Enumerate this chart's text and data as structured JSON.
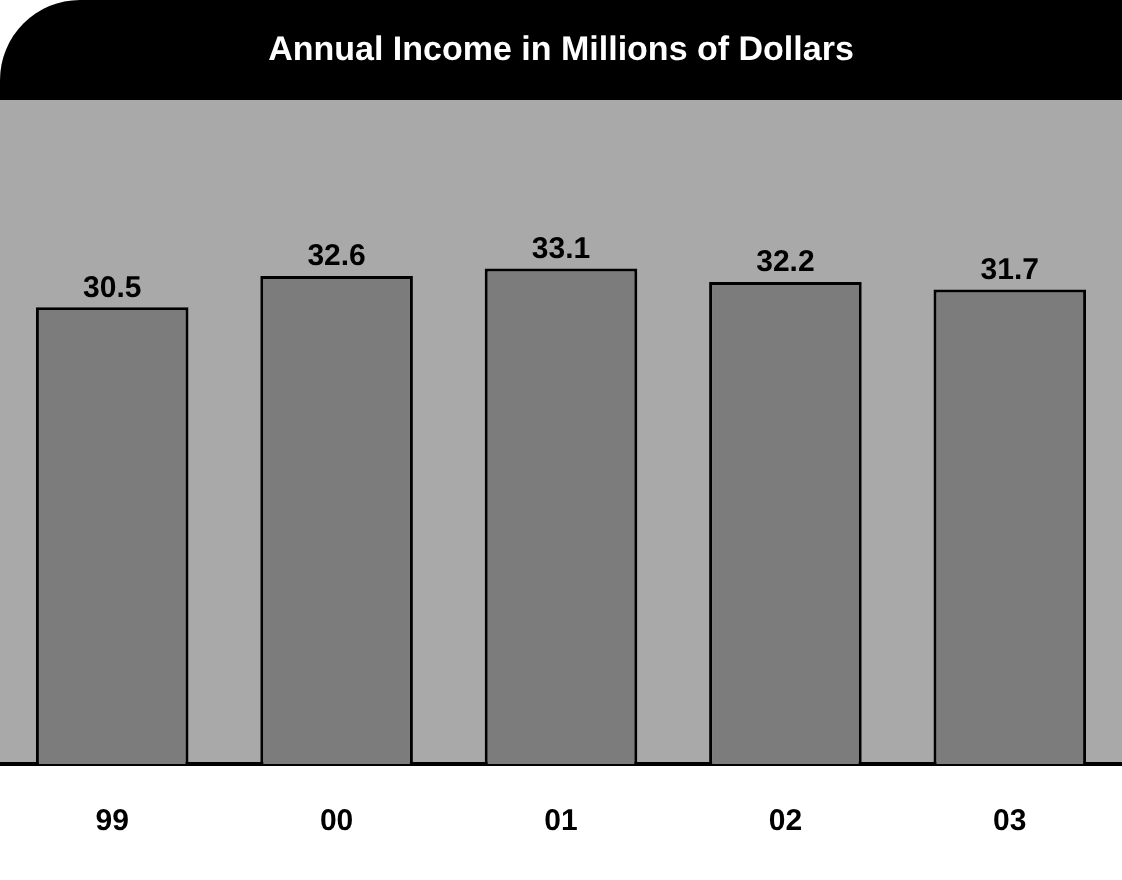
{
  "chart_data": {
    "type": "bar",
    "title": "Annual Income in Millions of Dollars",
    "categories": [
      "99",
      "00",
      "01",
      "02",
      "03"
    ],
    "values": [
      30.5,
      32.6,
      33.1,
      32.2,
      31.7
    ],
    "color": "#7c7c7c",
    "data_labels": true,
    "grid": false,
    "legend": false
  }
}
